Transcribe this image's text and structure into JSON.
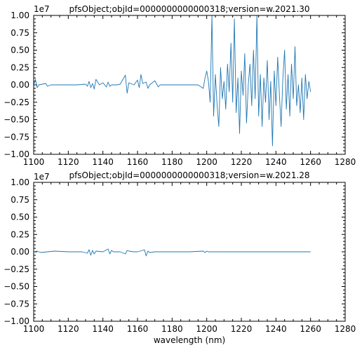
{
  "chart_data": [
    {
      "type": "line",
      "title": "pfsObject;objId=0000000000000318;version=w.2021.30",
      "xlabel": "",
      "ylabel": "",
      "xlim": [
        1100,
        1280
      ],
      "ylim": [
        -1.0,
        1.0
      ],
      "y_scale_offset": "1e7",
      "x_ticks": [
        "1100",
        "1120",
        "1140",
        "1160",
        "1180",
        "1200",
        "1220",
        "1240",
        "1260",
        "1280"
      ],
      "y_ticks": [
        "−1.00",
        "−0.75",
        "−0.50",
        "−0.25",
        "0.00",
        "0.25",
        "0.50",
        "0.75",
        "1.00"
      ],
      "series_color": "#1f77b4",
      "series": [
        {
          "x": [
            1100,
            1101,
            1102,
            1103,
            1105,
            1107,
            1108,
            1110,
            1115,
            1120,
            1125,
            1130,
            1131,
            1132,
            1133,
            1134,
            1135,
            1136,
            1138,
            1140,
            1142,
            1143,
            1144,
            1145,
            1148,
            1150,
            1153,
            1154,
            1155,
            1158,
            1160,
            1161,
            1162,
            1163,
            1165,
            1166,
            1167,
            1170,
            1172,
            1173,
            1175,
            1180,
            1185,
            1190,
            1195,
            1198,
            1199,
            1200,
            1201,
            1202,
            1203,
            1204,
            1205,
            1206,
            1207,
            1208,
            1209,
            1210,
            1211,
            1212,
            1213,
            1214,
            1215,
            1216,
            1217,
            1218,
            1219,
            1220,
            1221,
            1222,
            1223,
            1224,
            1225,
            1226,
            1227,
            1228,
            1229,
            1230,
            1231,
            1232,
            1233,
            1234,
            1235,
            1236,
            1237,
            1238,
            1239,
            1240,
            1241,
            1242,
            1243,
            1244,
            1245,
            1246,
            1247,
            1248,
            1249,
            1250,
            1251,
            1252,
            1253,
            1254,
            1255,
            1256,
            1257,
            1258,
            1259,
            1260
          ],
          "y": [
            0.0,
            0.08,
            -0.04,
            0.0,
            0.01,
            0.02,
            -0.02,
            0.0,
            0.0,
            0.0,
            0.0,
            0.01,
            -0.02,
            0.05,
            -0.04,
            0.02,
            -0.06,
            0.08,
            0.0,
            0.03,
            -0.03,
            0.04,
            -0.02,
            0.0,
            0.0,
            0.01,
            0.14,
            -0.12,
            0.03,
            0.0,
            0.07,
            -0.04,
            0.15,
            0.02,
            0.04,
            -0.05,
            0.0,
            0.06,
            -0.03,
            0.0,
            0.0,
            0.0,
            0.0,
            0.0,
            0.0,
            -0.05,
            0.1,
            0.2,
            0.05,
            -0.25,
            1.0,
            -0.45,
            0.15,
            -0.3,
            -0.6,
            0.25,
            -0.2,
            0.05,
            -0.35,
            0.3,
            -0.1,
            0.6,
            -0.25,
            0.95,
            -0.4,
            0.1,
            -0.7,
            0.2,
            -0.15,
            0.45,
            -0.55,
            0.0,
            0.3,
            -0.3,
            0.5,
            -0.2,
            1.0,
            -0.45,
            0.15,
            -0.6,
            0.1,
            -0.25,
            0.35,
            -0.5,
            0.05,
            -0.88,
            0.2,
            -0.3,
            0.4,
            -0.15,
            -0.6,
            0.1,
            0.5,
            -0.35,
            0.15,
            -0.45,
            0.3,
            -0.2,
            0.55,
            -0.3,
            0.0,
            -0.4,
            0.1,
            -0.5,
            0.15,
            -0.2,
            0.05,
            -0.1
          ]
        }
      ]
    },
    {
      "type": "line",
      "title": "pfsObject;objId=0000000000000318;version=w.2021.28",
      "xlabel": "wavelength (nm)",
      "ylabel": "",
      "xlim": [
        1100,
        1280
      ],
      "ylim": [
        -1.0,
        1.0
      ],
      "y_scale_offset": "1e7",
      "x_ticks": [
        "1100",
        "1120",
        "1140",
        "1160",
        "1180",
        "1200",
        "1220",
        "1240",
        "1260",
        "1280"
      ],
      "y_ticks": [
        "−1.00",
        "−0.75",
        "−0.50",
        "−0.25",
        "0.00",
        "0.25",
        "0.50",
        "0.75",
        "1.00"
      ],
      "series_color": "#1f77b4",
      "series": [
        {
          "x": [
            1100,
            1102,
            1104,
            1108,
            1112,
            1120,
            1128,
            1131,
            1132,
            1133,
            1134,
            1135,
            1136,
            1140,
            1143,
            1144,
            1145,
            1146,
            1150,
            1153,
            1154,
            1155,
            1158,
            1160,
            1163,
            1164,
            1165,
            1166,
            1167,
            1170,
            1172,
            1175,
            1180,
            1190,
            1198,
            1199,
            1200,
            1201,
            1210,
            1220,
            1230,
            1240,
            1250,
            1260
          ],
          "y": [
            0.0,
            0.01,
            -0.01,
            0.0,
            0.01,
            0.0,
            0.0,
            -0.02,
            0.03,
            -0.05,
            0.02,
            -0.03,
            0.01,
            0.0,
            0.04,
            -0.03,
            0.02,
            0.0,
            0.0,
            -0.03,
            0.02,
            0.01,
            0.0,
            0.0,
            0.02,
            0.03,
            -0.06,
            0.01,
            -0.01,
            0.0,
            0.0,
            0.0,
            0.0,
            0.0,
            0.01,
            -0.01,
            0.01,
            0.0,
            0.0,
            0.0,
            0.0,
            0.0,
            0.0,
            0.0
          ]
        }
      ]
    }
  ]
}
